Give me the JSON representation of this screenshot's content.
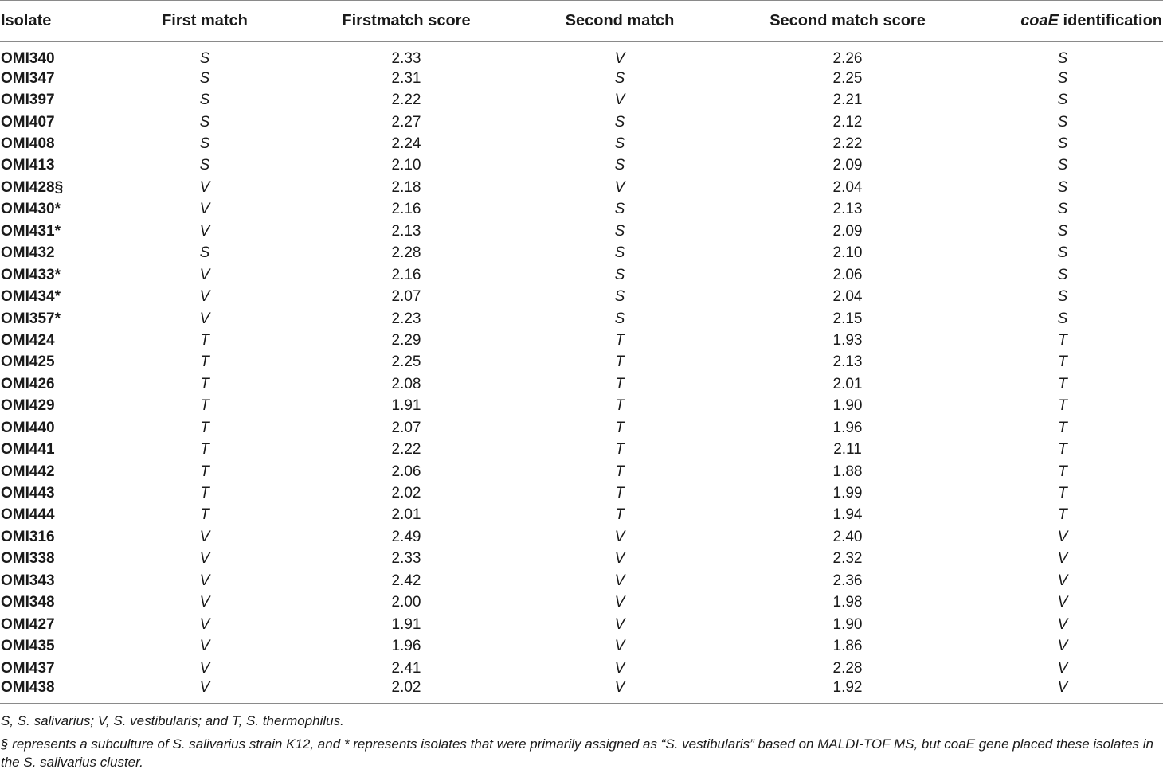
{
  "table": {
    "headers": {
      "isolate": "Isolate",
      "first_match": "First match",
      "first_score": "Firstmatch score",
      "second_match": "Second match",
      "second_score": "Second match score",
      "coae_italic": "coaE",
      "coae_rest": " identification"
    },
    "rows": [
      [
        "OMI340",
        "S",
        "2.33",
        "V",
        "2.26",
        "S"
      ],
      [
        "OMI347",
        "S",
        "2.31",
        "S",
        "2.25",
        "S"
      ],
      [
        "OMI397",
        "S",
        "2.22",
        "V",
        "2.21",
        "S"
      ],
      [
        "OMI407",
        "S",
        "2.27",
        "S",
        "2.12",
        "S"
      ],
      [
        "OMI408",
        "S",
        "2.24",
        "S",
        "2.22",
        "S"
      ],
      [
        "OMI413",
        "S",
        "2.10",
        "S",
        "2.09",
        "S"
      ],
      [
        "OMI428§",
        "V",
        "2.18",
        "V",
        "2.04",
        "S"
      ],
      [
        "OMI430*",
        "V",
        "2.16",
        "S",
        "2.13",
        "S"
      ],
      [
        "OMI431*",
        "V",
        "2.13",
        "S",
        "2.09",
        "S"
      ],
      [
        "OMI432",
        "S",
        "2.28",
        "S",
        "2.10",
        "S"
      ],
      [
        "OMI433*",
        "V",
        "2.16",
        "S",
        "2.06",
        "S"
      ],
      [
        "OMI434*",
        "V",
        "2.07",
        "S",
        "2.04",
        "S"
      ],
      [
        "OMI357*",
        "V",
        "2.23",
        "S",
        "2.15",
        "S"
      ],
      [
        "OMI424",
        "T",
        "2.29",
        "T",
        "1.93",
        "T"
      ],
      [
        "OMI425",
        "T",
        "2.25",
        "T",
        "2.13",
        "T"
      ],
      [
        "OMI426",
        "T",
        "2.08",
        "T",
        "2.01",
        "T"
      ],
      [
        "OMI429",
        "T",
        "1.91",
        "T",
        "1.90",
        "T"
      ],
      [
        "OMI440",
        "T",
        "2.07",
        "T",
        "1.96",
        "T"
      ],
      [
        "OMI441",
        "T",
        "2.22",
        "T",
        "2.11",
        "T"
      ],
      [
        "OMI442",
        "T",
        "2.06",
        "T",
        "1.88",
        "T"
      ],
      [
        "OMI443",
        "T",
        "2.02",
        "T",
        "1.99",
        "T"
      ],
      [
        "OMI444",
        "T",
        "2.01",
        "T",
        "1.94",
        "T"
      ],
      [
        "OMI316",
        "V",
        "2.49",
        "V",
        "2.40",
        "V"
      ],
      [
        "OMI338",
        "V",
        "2.33",
        "V",
        "2.32",
        "V"
      ],
      [
        "OMI343",
        "V",
        "2.42",
        "V",
        "2.36",
        "V"
      ],
      [
        "OMI348",
        "V",
        "2.00",
        "V",
        "1.98",
        "V"
      ],
      [
        "OMI427",
        "V",
        "1.91",
        "V",
        "1.90",
        "V"
      ],
      [
        "OMI435",
        "V",
        "1.96",
        "V",
        "1.86",
        "V"
      ],
      [
        "OMI437",
        "V",
        "2.41",
        "V",
        "2.28",
        "V"
      ],
      [
        "OMI438",
        "V",
        "2.02",
        "V",
        "1.92",
        "V"
      ]
    ]
  },
  "footnotes": {
    "legend": "S, S. salivarius; V, S. vestibularis; and T, S. thermophilus.",
    "note": "§ represents a subculture of S. salivarius strain K12, and * represents isolates that were primarily assigned as “S. vestibularis” based on MALDI-TOF MS, but coaE gene placed these isolates in the S. salivarius cluster."
  }
}
